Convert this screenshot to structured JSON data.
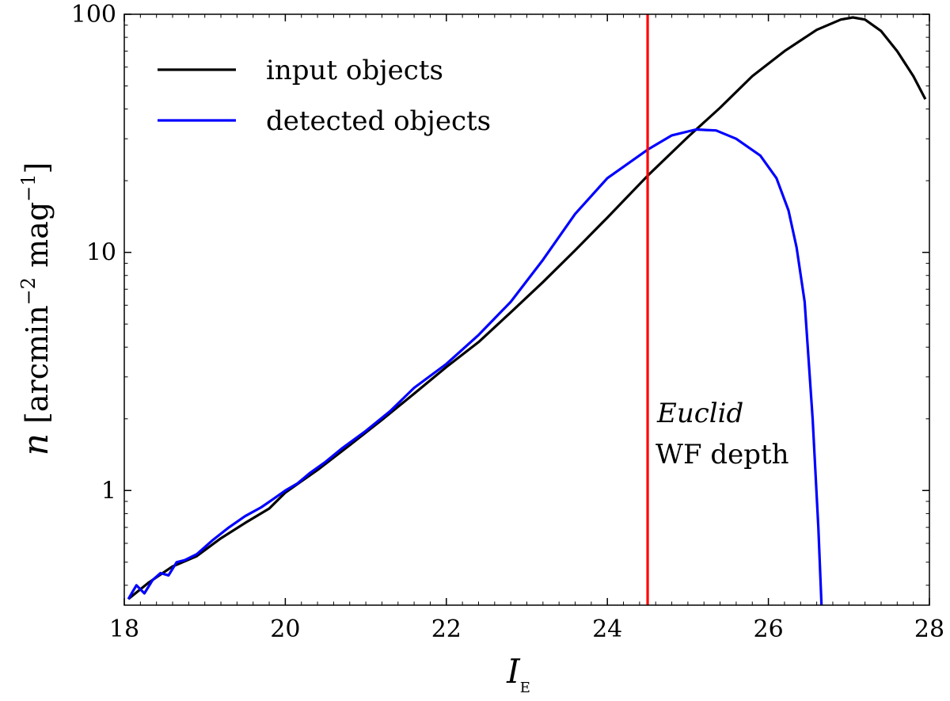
{
  "chart_data": {
    "type": "line",
    "xlabel": "I",
    "xlabel_sub": "E",
    "ylabel_parts": {
      "var": "n",
      "unit_open": "[arcmin",
      "exp1": "−2",
      "unit_mid": " mag",
      "exp2": "−1",
      "unit_close": "]"
    },
    "xlim": [
      18,
      28
    ],
    "ylim": [
      0.33,
      100
    ],
    "yscale": "log",
    "grid": false,
    "legend_position": "top-left",
    "x_ticks": [
      18,
      20,
      22,
      24,
      26,
      28
    ],
    "x_tick_labels": [
      "18",
      "20",
      "22",
      "24",
      "26",
      "28"
    ],
    "y_ticks": [
      1,
      10,
      100
    ],
    "y_tick_labels": [
      "1",
      "10",
      "100"
    ],
    "series": [
      {
        "name": "input objects",
        "color": "#000000",
        "x": [
          18.05,
          18.3,
          18.6,
          18.9,
          19.2,
          19.5,
          19.8,
          20.0,
          20.4,
          20.8,
          21.2,
          21.6,
          22.0,
          22.4,
          22.8,
          23.2,
          23.6,
          24.0,
          24.5,
          25.0,
          25.4,
          25.8,
          26.2,
          26.6,
          26.9,
          27.05,
          27.2,
          27.4,
          27.6,
          27.8,
          27.95
        ],
        "y": [
          0.35,
          0.41,
          0.48,
          0.53,
          0.63,
          0.73,
          0.84,
          0.98,
          1.22,
          1.55,
          1.98,
          2.55,
          3.3,
          4.2,
          5.6,
          7.5,
          10.2,
          14.0,
          21.0,
          30.5,
          40.5,
          55.0,
          70.0,
          86.0,
          95.0,
          97.0,
          95.0,
          85.0,
          70.0,
          55.0,
          44.0
        ]
      },
      {
        "name": "detected objects",
        "color": "#0000ff",
        "x": [
          18.05,
          18.15,
          18.25,
          18.35,
          18.45,
          18.55,
          18.65,
          18.75,
          18.9,
          19.1,
          19.3,
          19.5,
          19.7,
          19.85,
          20.0,
          20.15,
          20.3,
          20.5,
          20.7,
          21.0,
          21.3,
          21.6,
          22.0,
          22.4,
          22.8,
          23.2,
          23.6,
          24.0,
          24.5,
          24.8,
          25.1,
          25.35,
          25.6,
          25.9,
          26.1,
          26.25,
          26.35,
          26.45,
          26.55,
          26.62,
          26.66
        ],
        "y": [
          0.35,
          0.4,
          0.37,
          0.42,
          0.45,
          0.44,
          0.5,
          0.51,
          0.54,
          0.62,
          0.7,
          0.78,
          0.85,
          0.92,
          1.0,
          1.07,
          1.18,
          1.32,
          1.5,
          1.78,
          2.15,
          2.7,
          3.4,
          4.5,
          6.2,
          9.3,
          14.5,
          20.5,
          27.0,
          31.0,
          32.8,
          32.5,
          30.0,
          25.5,
          20.5,
          15.0,
          10.5,
          6.2,
          2.0,
          0.7,
          0.33
        ]
      }
    ],
    "threshold": {
      "x": 24.5,
      "color": "#ff0000",
      "label_line1": "Euclid",
      "label_line2": "WF depth"
    }
  }
}
